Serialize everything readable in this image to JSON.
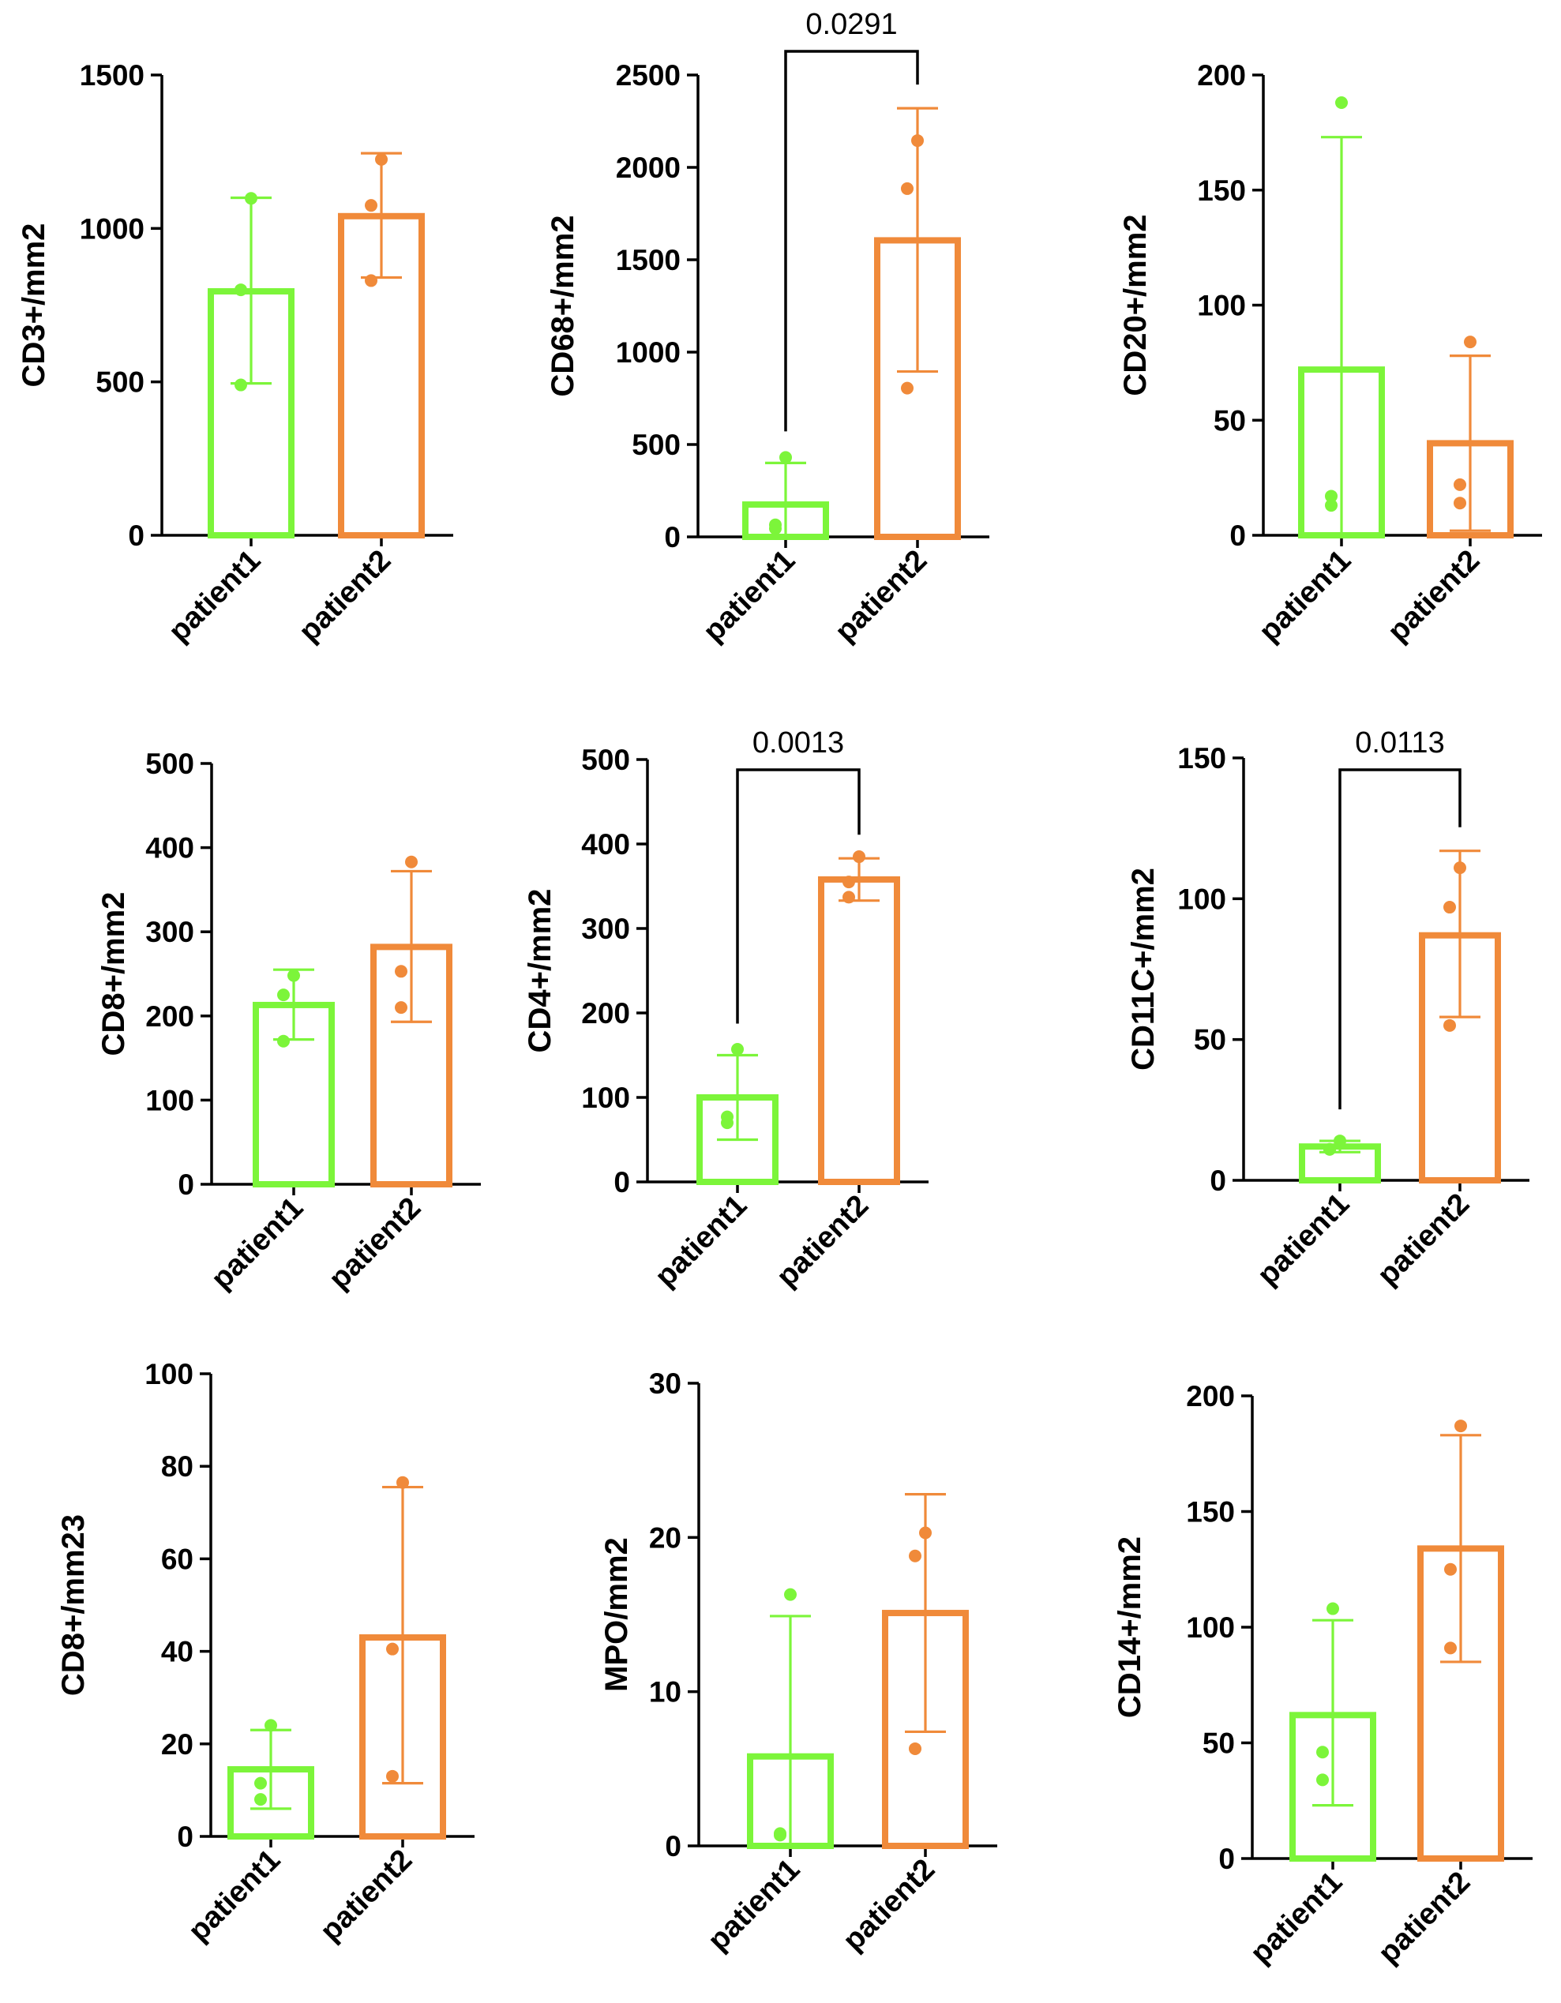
{
  "colors": {
    "patient1": "#7CF53A",
    "patient2": "#F08A3A",
    "axis": "#000000"
  },
  "chart_data": [
    {
      "type": "bar",
      "ylabel": "CD3+/mm2",
      "categories": [
        "patient1",
        "patient2"
      ],
      "ylim": [
        0,
        1500
      ],
      "yticks": [
        0,
        500,
        1000,
        1500
      ],
      "ytick_labels": [
        "0",
        "500",
        "1000",
        "1500"
      ],
      "series": [
        {
          "name": "patient1",
          "mean": 795,
          "err_low": 495,
          "err_high": 1100,
          "points": [
            1098,
            800,
            490
          ]
        },
        {
          "name": "patient2",
          "mean": 1040,
          "err_low": 840,
          "err_high": 1245,
          "points": [
            1225,
            1075,
            830
          ]
        }
      ],
      "pvalue": null
    },
    {
      "type": "bar",
      "ylabel": "CD68+/mm2",
      "categories": [
        "patient1",
        "patient2"
      ],
      "ylim": [
        0,
        2500
      ],
      "yticks": [
        0,
        500,
        1000,
        1500,
        2000,
        2500
      ],
      "ytick_labels": [
        "0",
        "500",
        "1000",
        "1500",
        "2000",
        "2500"
      ],
      "series": [
        {
          "name": "patient1",
          "mean": 175,
          "err_low": 0,
          "err_high": 400,
          "points": [
            430,
            65,
            45
          ]
        },
        {
          "name": "patient2",
          "mean": 1605,
          "err_low": 895,
          "err_high": 2320,
          "points": [
            2145,
            1885,
            805
          ]
        }
      ],
      "pvalue": "0.0291"
    },
    {
      "type": "bar",
      "ylabel": "CD20+/mm2",
      "categories": [
        "patient1",
        "patient2"
      ],
      "ylim": [
        0,
        200
      ],
      "yticks": [
        0,
        50,
        100,
        150,
        200
      ],
      "ytick_labels": [
        "0",
        "50",
        "100",
        "150",
        "200"
      ],
      "series": [
        {
          "name": "patient1",
          "mean": 72,
          "err_low": 0,
          "err_high": 173,
          "points": [
            188,
            17,
            13
          ]
        },
        {
          "name": "patient2",
          "mean": 40,
          "err_low": 2,
          "err_high": 78,
          "points": [
            84,
            22,
            14
          ]
        }
      ],
      "pvalue": null
    },
    {
      "type": "bar",
      "ylabel": "CD8+/mm2",
      "categories": [
        "patient1",
        "patient2"
      ],
      "ylim": [
        0,
        500
      ],
      "yticks": [
        0,
        100,
        200,
        300,
        400,
        500
      ],
      "ytick_labels": [
        "0",
        "100",
        "200",
        "300",
        "400",
        "500"
      ],
      "series": [
        {
          "name": "patient1",
          "mean": 213,
          "err_low": 172,
          "err_high": 255,
          "points": [
            248,
            225,
            170
          ]
        },
        {
          "name": "patient2",
          "mean": 282,
          "err_low": 193,
          "err_high": 372,
          "points": [
            383,
            253,
            210
          ]
        }
      ],
      "pvalue": null
    },
    {
      "type": "bar",
      "ylabel": "CD4+/mm2",
      "categories": [
        "patient1",
        "patient2"
      ],
      "ylim": [
        0,
        500
      ],
      "yticks": [
        0,
        100,
        200,
        300,
        400,
        500
      ],
      "ytick_labels": [
        "0",
        "100",
        "200",
        "300",
        "400",
        "500"
      ],
      "series": [
        {
          "name": "patient1",
          "mean": 100,
          "err_low": 50,
          "err_high": 150,
          "points": [
            157,
            77,
            70
          ]
        },
        {
          "name": "patient2",
          "mean": 358,
          "err_low": 333,
          "err_high": 383,
          "points": [
            385,
            355,
            337
          ]
        }
      ],
      "pvalue": "0.0013"
    },
    {
      "type": "bar",
      "ylabel": "CD11C+/mm2",
      "categories": [
        "patient1",
        "patient2"
      ],
      "ylim": [
        0,
        150
      ],
      "yticks": [
        0,
        50,
        100,
        150
      ],
      "ytick_labels": [
        "0",
        "50",
        "100",
        "150"
      ],
      "series": [
        {
          "name": "patient1",
          "mean": 12,
          "err_low": 10,
          "err_high": 14,
          "points": [
            14,
            11,
            11
          ]
        },
        {
          "name": "patient2",
          "mean": 87,
          "err_low": 58,
          "err_high": 117,
          "points": [
            111,
            97,
            55
          ]
        }
      ],
      "pvalue": "0.0113"
    },
    {
      "type": "bar",
      "ylabel": "CD8+/mm23",
      "categories": [
        "patient1",
        "patient2"
      ],
      "ylim": [
        0,
        100
      ],
      "yticks": [
        0,
        20,
        40,
        60,
        80,
        100
      ],
      "ytick_labels": [
        "0",
        "20",
        "40",
        "60",
        "80",
        "100"
      ],
      "series": [
        {
          "name": "patient1",
          "mean": 14.5,
          "err_low": 6,
          "err_high": 23,
          "points": [
            24,
            11.5,
            8
          ]
        },
        {
          "name": "patient2",
          "mean": 43,
          "err_low": 11.5,
          "err_high": 75.5,
          "points": [
            76.5,
            40.5,
            13
          ]
        }
      ],
      "pvalue": null
    },
    {
      "type": "bar",
      "ylabel": "MPO/mm2",
      "categories": [
        "patient1",
        "patient2"
      ],
      "ylim": [
        0,
        30
      ],
      "yticks": [
        0,
        10,
        20,
        30
      ],
      "ytick_labels": [
        "0",
        "10",
        "20",
        "30"
      ],
      "series": [
        {
          "name": "patient1",
          "mean": 5.8,
          "err_low": 0,
          "err_high": 14.9,
          "points": [
            16.3,
            0.7,
            0.8
          ]
        },
        {
          "name": "patient2",
          "mean": 15.1,
          "err_low": 7.4,
          "err_high": 22.8,
          "points": [
            20.3,
            18.8,
            6.3
          ]
        }
      ],
      "pvalue": null
    },
    {
      "type": "bar",
      "ylabel": "CD14+/mm2",
      "categories": [
        "patient1",
        "patient2"
      ],
      "ylim": [
        0,
        200
      ],
      "yticks": [
        0,
        50,
        100,
        150,
        200
      ],
      "ytick_labels": [
        "0",
        "50",
        "100",
        "150",
        "200"
      ],
      "series": [
        {
          "name": "patient1",
          "mean": 62,
          "err_low": 23,
          "err_high": 103,
          "points": [
            108,
            46,
            34
          ]
        },
        {
          "name": "patient2",
          "mean": 134,
          "err_low": 85,
          "err_high": 183,
          "points": [
            187,
            125,
            91
          ]
        }
      ],
      "pvalue": null
    }
  ]
}
